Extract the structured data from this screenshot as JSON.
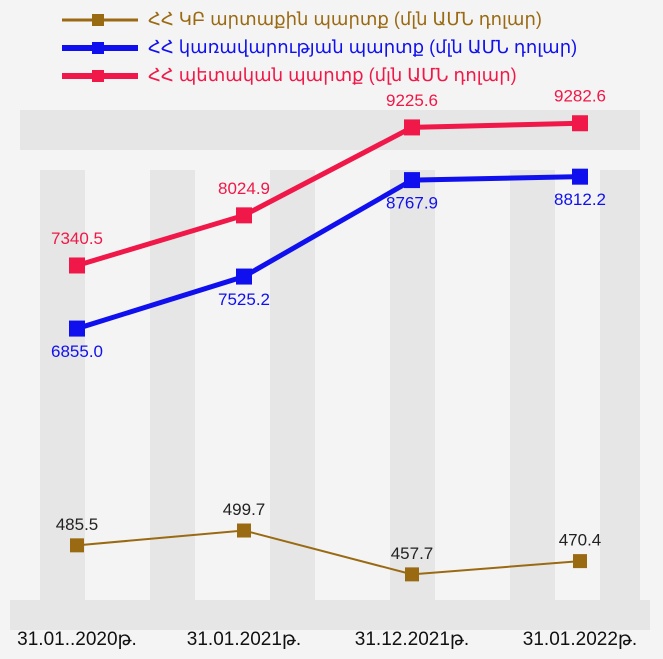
{
  "chart_data": {
    "type": "line",
    "categories": [
      "31.01..2020թ.",
      "31.01.2021թ.",
      "31.12.2021թ.",
      "31.01.2022թ."
    ],
    "series": [
      {
        "name": "ՀՀ ԿԲ արտաքին պարտք (մլն ԱՄՆ դոլար)",
        "color": "#9a6a12",
        "values": [
          485.5,
          499.7,
          457.7,
          470.4
        ],
        "value_labels": [
          "485.5",
          "499.7",
          "457.7",
          "470.4"
        ],
        "ylim": [
          414,
          912
        ]
      },
      {
        "name": "ՀՀ կառավարության պարտք (մլն ԱՄՆ դոլար)",
        "color": "#1010ee",
        "values": [
          6855.0,
          7525.2,
          8767.9,
          8812.2
        ],
        "value_labels": [
          "6855.0",
          "7525.2",
          "8767.9",
          "8812.2"
        ],
        "ylim": [
          3100,
          9800
        ]
      },
      {
        "name": "ՀՀ պետական պարտք (մլն ԱՄՆ դոլար)",
        "color": "#f01848",
        "values": [
          7340.5,
          8024.9,
          9225.6,
          9282.6
        ],
        "value_labels": [
          "7340.5",
          "8024.9",
          "9225.6",
          "9282.6"
        ],
        "ylim": [
          2500,
          9600
        ]
      }
    ]
  }
}
